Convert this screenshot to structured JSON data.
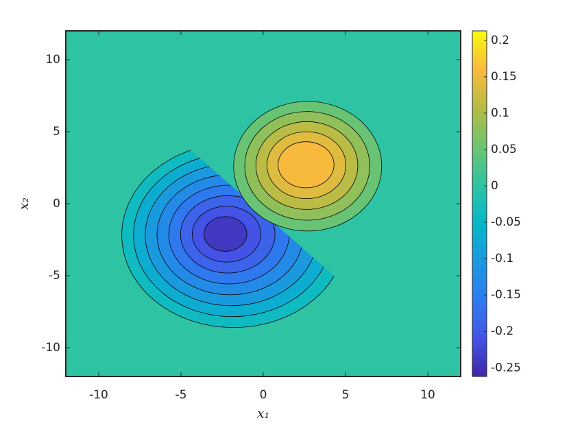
{
  "chart_data": {
    "type": "contour",
    "xlabel": "x₁",
    "ylabel": "x₂",
    "xlim": [
      -12,
      12
    ],
    "ylim": [
      -12,
      12
    ],
    "xticks": [
      -10,
      -5,
      0,
      5,
      10
    ],
    "yticks": [
      -10,
      -5,
      0,
      5,
      10
    ],
    "clim": [
      -0.262,
      0.213
    ],
    "cticks": [
      -0.25,
      -0.2,
      -0.15,
      -0.1,
      -0.05,
      0,
      0.05,
      0.1,
      0.15,
      0.2
    ],
    "colormap": [
      "#3e26a8",
      "#4454e6",
      "#2e7cf0",
      "#1a98e0",
      "#06b8c8",
      "#30c3a2",
      "#6dc46f",
      "#b7bc45",
      "#f8ba3d",
      "#f9fb0e"
    ],
    "base_level": 0,
    "negative_levels": [
      -0.04,
      -0.07,
      -0.1,
      -0.13,
      -0.16,
      -0.19,
      -0.21,
      -0.24
    ],
    "positive_levels": [
      0.05,
      0.08,
      0.11,
      0.14,
      0.16
    ]
  }
}
